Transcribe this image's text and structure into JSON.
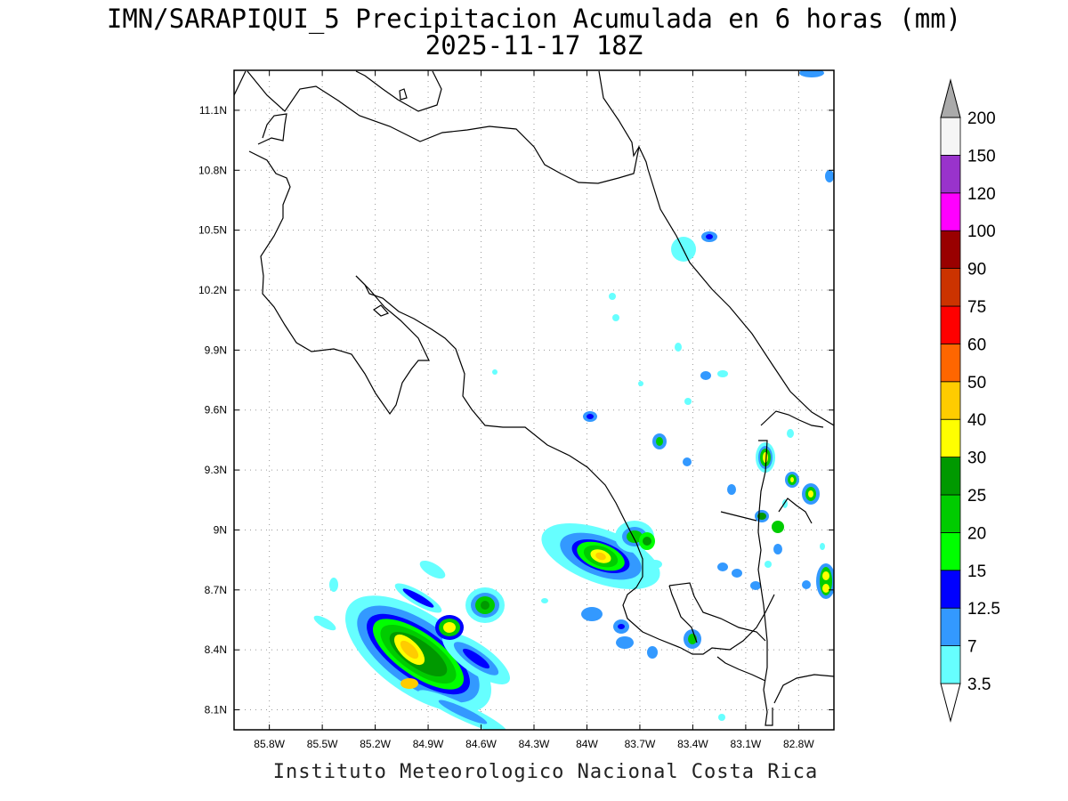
{
  "header": {
    "title_line1": "IMN/SARAPIQUI_5 Precipitacion Acumulada en 6 horas (mm)",
    "title_line2": "2025-11-17 18Z"
  },
  "footer": {
    "credit": "Instituto Meteorologico Nacional Costa Rica"
  },
  "map": {
    "lon_range": [
      -86.0,
      -82.6
    ],
    "lat_range": [
      8.0,
      11.3
    ],
    "lon_ticks": [
      -85.8,
      -85.5,
      -85.2,
      -84.9,
      -84.6,
      -84.3,
      -84.0,
      -83.7,
      -83.4,
      -83.1,
      -82.8
    ],
    "lat_ticks": [
      8.1,
      8.4,
      8.7,
      9.0,
      9.3,
      9.6,
      9.9,
      10.2,
      10.5,
      10.8,
      11.1
    ],
    "lon_labels": [
      "85.8W",
      "85.5W",
      "85.2W",
      "84.9W",
      "84.6W",
      "84.3W",
      "84W",
      "83.7W",
      "83.4W",
      "83.1W",
      "82.8W"
    ],
    "lat_labels": [
      "8.1N",
      "8.4N",
      "8.7N",
      "9N",
      "9.3N",
      "9.6N",
      "9.9N",
      "10.2N",
      "10.5N",
      "10.8N",
      "11.1N"
    ],
    "grid": true
  },
  "colorbar": {
    "levels": [
      "3.5",
      "7",
      "12.5",
      "15",
      "20",
      "25",
      "30",
      "40",
      "50",
      "60",
      "75",
      "90",
      "100",
      "120",
      "150",
      "200"
    ],
    "colors": [
      "#66ffff",
      "#3399ff",
      "#0000ff",
      "#00ff00",
      "#00cc00",
      "#009900",
      "#ffff00",
      "#ffcc00",
      "#ff6600",
      "#ff0000",
      "#cc3300",
      "#990000",
      "#ff00ff",
      "#9933cc",
      "#f5f5f5",
      "#aaaaaa"
    ],
    "below_color": "#ffffff",
    "above_color": "#aaaaaa"
  }
}
